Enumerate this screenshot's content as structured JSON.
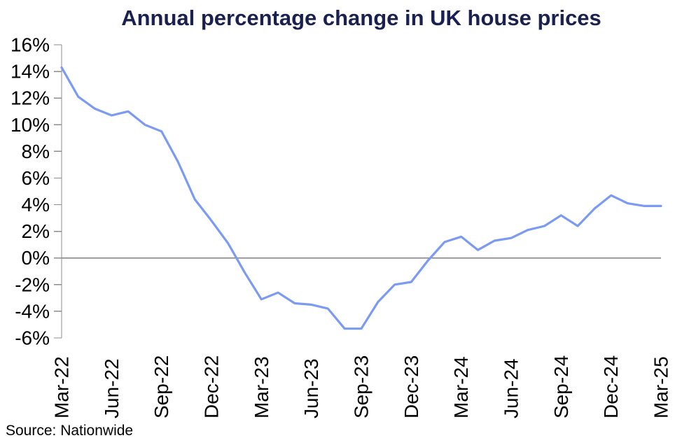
{
  "title": "Annual percentage change in UK house prices",
  "source": "Source: Nationwide",
  "colors": {
    "title": "#1a2150",
    "line": "#7b9bf3",
    "zero_line": "#7f7f7f",
    "axis": "#8c8c8c",
    "tick_label": "#000000"
  },
  "chart_data": {
    "type": "line",
    "title": "Annual percentage change in UK house prices",
    "source": "Source: Nationwide",
    "xlabel": "",
    "ylabel": "",
    "ylim": [
      -6,
      16
    ],
    "y_ticks": [
      16,
      14,
      12,
      10,
      8,
      6,
      4,
      2,
      0,
      -2,
      -4,
      -6
    ],
    "y_tick_suffix": "%",
    "grid": false,
    "legend": "none",
    "zero_line": true,
    "x": [
      "Mar-22",
      "Apr-22",
      "May-22",
      "Jun-22",
      "Jul-22",
      "Aug-22",
      "Sep-22",
      "Oct-22",
      "Nov-22",
      "Dec-22",
      "Jan-23",
      "Feb-23",
      "Mar-23",
      "Apr-23",
      "May-23",
      "Jun-23",
      "Jul-23",
      "Aug-23",
      "Sep-23",
      "Oct-23",
      "Nov-23",
      "Dec-23",
      "Jan-24",
      "Feb-24",
      "Mar-24",
      "Apr-24",
      "May-24",
      "Jun-24",
      "Jul-24",
      "Aug-24",
      "Sep-24",
      "Oct-24",
      "Nov-24",
      "Dec-24",
      "Jan-25",
      "Feb-25",
      "Mar-25"
    ],
    "values": [
      14.3,
      12.1,
      11.2,
      10.7,
      11.0,
      10.0,
      9.5,
      7.2,
      4.4,
      2.8,
      1.1,
      -1.1,
      -3.1,
      -2.6,
      -3.4,
      -3.5,
      -3.8,
      -5.3,
      -5.3,
      -3.3,
      -2.0,
      -1.8,
      -0.2,
      1.2,
      1.6,
      0.6,
      1.3,
      1.5,
      2.1,
      2.4,
      3.2,
      2.4,
      3.7,
      4.7,
      4.1,
      3.9,
      3.9
    ],
    "x_tick_labels": [
      "Mar-22",
      "Jun-22",
      "Sep-22",
      "Dec-22",
      "Mar-23",
      "Jun-23",
      "Sep-23",
      "Dec-23",
      "Mar-24",
      "Jun-24",
      "Sep-24",
      "Dec-24",
      "Mar-25"
    ],
    "x_tick_every_n_months": 3
  }
}
